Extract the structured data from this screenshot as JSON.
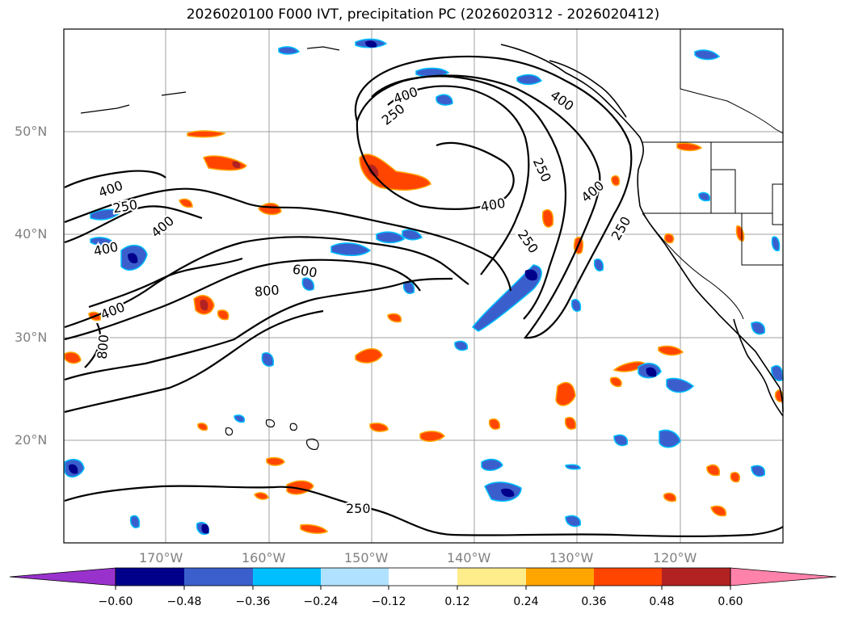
{
  "title": "2026020100 F000 IVT, precipitation PC (2026020312 - 2026020412)",
  "axes": {
    "lat_labels": [
      "50°N",
      "40°N",
      "30°N",
      "20°N"
    ],
    "lon_labels": [
      "170°W",
      "160°W",
      "150°W",
      "140°W",
      "130°W",
      "120°W"
    ]
  },
  "contour_labels": [
    "250",
    "400",
    "400",
    "250",
    "400",
    "250",
    "400",
    "400",
    "250",
    "400",
    "600",
    "800",
    "400",
    "800",
    "250",
    "250",
    "400",
    "250"
  ],
  "colorbar": {
    "ticks": [
      "−0.60",
      "−0.48",
      "−0.36",
      "−0.24",
      "−0.12",
      "0.12",
      "0.24",
      "0.36",
      "0.48",
      "0.60"
    ],
    "colors": [
      "#9932cc",
      "#00008b",
      "#3a5fcd",
      "#00bfff",
      "#b0e2ff",
      "#ffffff",
      "#ffec8b",
      "#ffa500",
      "#ff4500",
      "#b22222",
      "#ff82ab"
    ]
  },
  "colors": {
    "pos_fill": "#ff4500",
    "pos_outline": "#ffa500",
    "neg_fill": "#3a5fcd",
    "neg_outline": "#00bfff",
    "grid": "#a0a0a0"
  }
}
